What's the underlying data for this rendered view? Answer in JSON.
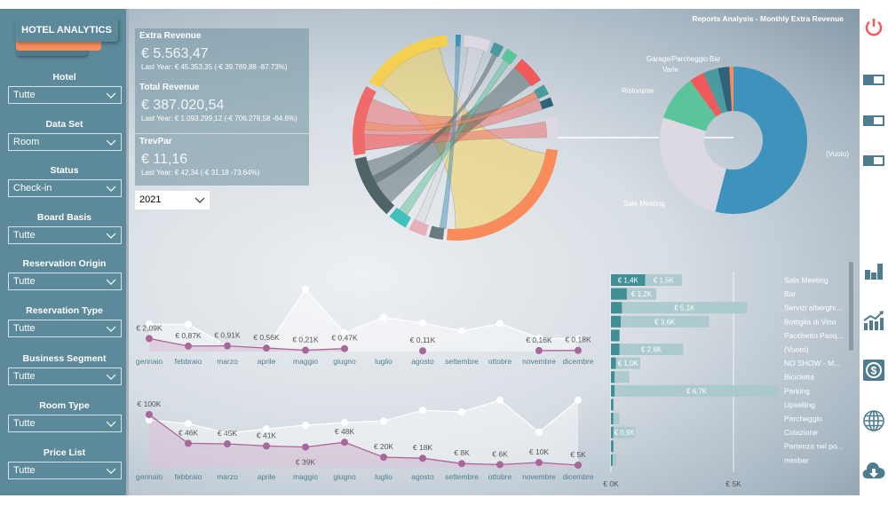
{
  "sidebar": {
    "brand": "HOTEL ANALYTICS",
    "filters": [
      {
        "label": "Hotel",
        "value": "Tutte"
      },
      {
        "label": "Data Set",
        "value": "Room"
      },
      {
        "label": "Status",
        "value": "Check-in"
      },
      {
        "label": "Board Basis",
        "value": "Tutte"
      },
      {
        "label": "Reservation Origin",
        "value": "Tutte"
      },
      {
        "label": "Reservation Type",
        "value": "Tutte"
      },
      {
        "label": "Business Segment",
        "value": "Tutte"
      },
      {
        "label": "Room Type",
        "value": "Tutte"
      },
      {
        "label": "Price List",
        "value": "Tutte"
      }
    ]
  },
  "report_title": "Reports Analysis - Monthly Extra Revenue",
  "kpis": [
    {
      "title": "Extra Revenue",
      "value": "€ 5.563,47",
      "last_year": "Last Year: € 45.353,35 (-€ 39.789,88 -87.73%)"
    },
    {
      "title": "Total Revenue",
      "value": "€ 387.020,54",
      "last_year": "Last Year: € 1.093.299,12 (-€ 706.278,58 -64.6%)"
    },
    {
      "title": "TrevPar",
      "value": "€ 11,16",
      "last_year": "Last Year: € 42,34 (-€ 31,18 -73.64%)"
    }
  ],
  "year_select": "2021",
  "colors": {
    "sidebar": "#5d8a9a",
    "accent": "#f78e5a",
    "current": "#a8669a",
    "last_year": "#ffffff",
    "bar_current": "#3f8f95",
    "bar_last": "#a9c9cc",
    "power": "#f05a5a",
    "icon": "#4f7d8f"
  },
  "chart_data": [
    {
      "type": "line",
      "categories": [
        "gennaio",
        "febbraio",
        "marzo",
        "aprile",
        "maggio",
        "giugno",
        "luglio",
        "agosto",
        "settembre",
        "ottobre",
        "novembre",
        "dicembre"
      ],
      "series": [
        {
          "values": [
            2.09,
            0.87,
            0.91,
            0.56,
            0.21,
            0.47,
            null,
            0.11,
            null,
            null,
            0.16,
            0.18
          ],
          "labels": [
            "€ 2,09K",
            "€ 0,87K",
            "€ 0,91K",
            "€ 0,56K",
            "€ 0,21K",
            "€ 0,47K",
            "",
            "€ 0,11K",
            "",
            "",
            "€ 0,16K",
            "€ 0,18K"
          ]
        },
        {
          "values": [
            4.4,
            4.4,
            0.9,
            0.7,
            10,
            3,
            5.5,
            4.6,
            3.3,
            4.5,
            2.2,
            2.0
          ]
        }
      ]
    },
    {
      "type": "area",
      "categories": [
        "gennaio",
        "febbraio",
        "marzo",
        "aprile",
        "maggio",
        "giugno",
        "luglio",
        "agosto",
        "settembre",
        "ottobre",
        "novembre",
        "dicembre"
      ],
      "series": [
        {
          "values": [
            100,
            46,
            45,
            41,
            39,
            48,
            20,
            18,
            8,
            6,
            10,
            5
          ],
          "labels": [
            "€ 100K",
            "€ 46K",
            "€ 45K",
            "€ 41K",
            "€ 39K",
            "€ 48K",
            "€ 20K",
            "€ 18K",
            "€ 8K",
            "€ 6K",
            "€ 10K",
            "€ 5K"
          ]
        },
        {
          "values": [
            90,
            83,
            65,
            73,
            80,
            85,
            88,
            108,
            105,
            127,
            67,
            127
          ]
        }
      ]
    },
    {
      "type": "bar",
      "orientation": "horizontal-stacked",
      "categories": [
        "Sala Meeting",
        "Bar",
        "Servizi alberghi...",
        "Bottiglia di Vino",
        "Pacchetto Pasq...",
        "(Vuoto)",
        "NO SHOW - M...",
        "Bicicletta",
        "Parking",
        "Upselling",
        "Parcheggio",
        "Colazione",
        "Partenza nel po...",
        "minibar"
      ],
      "series": [
        {
          "values": [
            1.4,
            0.65,
            0.45,
            0.4,
            0.35,
            0.35,
            0.2,
            0.15,
            0.15,
            0.1,
            0.1,
            0.1,
            0.1,
            0.07
          ],
          "labels": [
            "€ 1,4K",
            "",
            "",
            "",
            "",
            "",
            "",
            "",
            "",
            "",
            "",
            "",
            "",
            ""
          ]
        },
        {
          "values": [
            1.5,
            1.2,
            5.1,
            3.6,
            0,
            2.6,
            1.0,
            0.6,
            6.7,
            0,
            0.25,
            0.9,
            0,
            0.15
          ],
          "labels": [
            "€ 1,5K",
            "€ 1,2K",
            "€ 5,1K",
            "€ 3,6K",
            "",
            "€ 2,6K",
            "€ 1,0K",
            "",
            "€ 6,7K",
            "",
            "",
            "€ 0,9K",
            "",
            ""
          ]
        }
      ],
      "xticks": [
        "€ 0K",
        "€ 5K"
      ],
      "xlim": [
        0,
        7
      ]
    },
    {
      "type": "pie",
      "donut": true,
      "categories": [
        "(Vuoto)",
        "Sale Meeting",
        "Ristorante",
        "Varie",
        "Garage/Parcheggio",
        "Bar",
        ""
      ],
      "values": [
        54,
        26,
        10,
        3.3,
        3.3,
        2.5,
        0.9
      ],
      "colors": [
        "#3d93bb",
        "#dcd9e2",
        "#5cc49a",
        "#f05a5a",
        "#4b9a9e",
        "#2f6379",
        "#f98c5a"
      ]
    }
  ],
  "right_icons": [
    "power-icon",
    "toggle-icon",
    "toggle-icon",
    "toggle-icon",
    "bar-chart-icon",
    "trend-chart-icon",
    "dollar-icon",
    "globe-icon",
    "cloud-download-icon"
  ]
}
